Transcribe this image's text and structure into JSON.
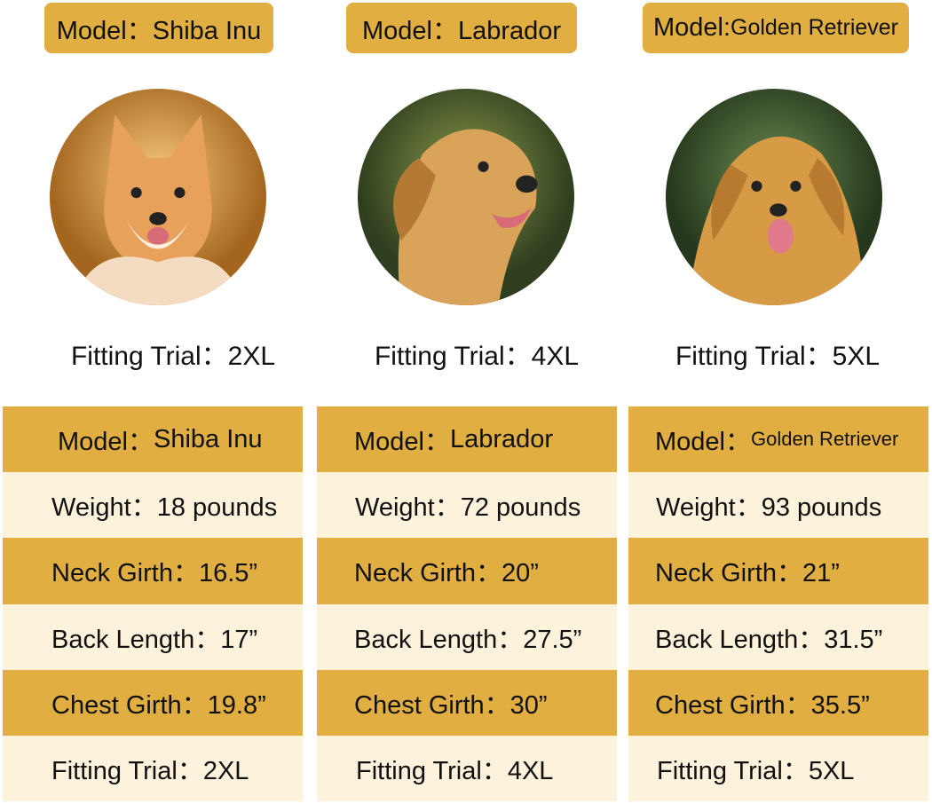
{
  "colors": {
    "gold": "#e1ae42",
    "cream": "#fdf2dc"
  },
  "dogs": [
    {
      "header": "Model：Shiba Inu",
      "photo": "shiba-inu-photo",
      "fitting_caption": "Fitting Trial：2XL",
      "model_label": "Model：",
      "model_value": "Shiba Inu",
      "weight": "Weight：18 pounds",
      "neck": "Neck Girth：16.5”",
      "back": "Back Length：17”",
      "chest": "Chest Girth：19.8”",
      "fitting": "Fitting Trial：2XL"
    },
    {
      "header": "Model：Labrador",
      "photo": "labrador-photo",
      "fitting_caption": "Fitting Trial：4XL",
      "model_label": "Model：",
      "model_value": "Labrador",
      "weight": "Weight：72 pounds",
      "neck": "Neck Girth：20”",
      "back": "Back Length：27.5”",
      "chest": "Chest Girth：30”",
      "fitting": "Fitting Trial：4XL"
    },
    {
      "header": "Model:Golden Retriever",
      "header_label": "Model:",
      "header_value": "Golden Retriever",
      "photo": "golden-retriever-photo",
      "fitting_caption": "Fitting Trial：5XL",
      "model_label": "Model：",
      "model_value": "Golden Retriever",
      "weight": "Weight：93 pounds",
      "neck": "Neck Girth：21”",
      "back": "Back Length：31.5”",
      "chest": "Chest Girth：35.5”",
      "fitting": "Fitting Trial：5XL"
    }
  ]
}
